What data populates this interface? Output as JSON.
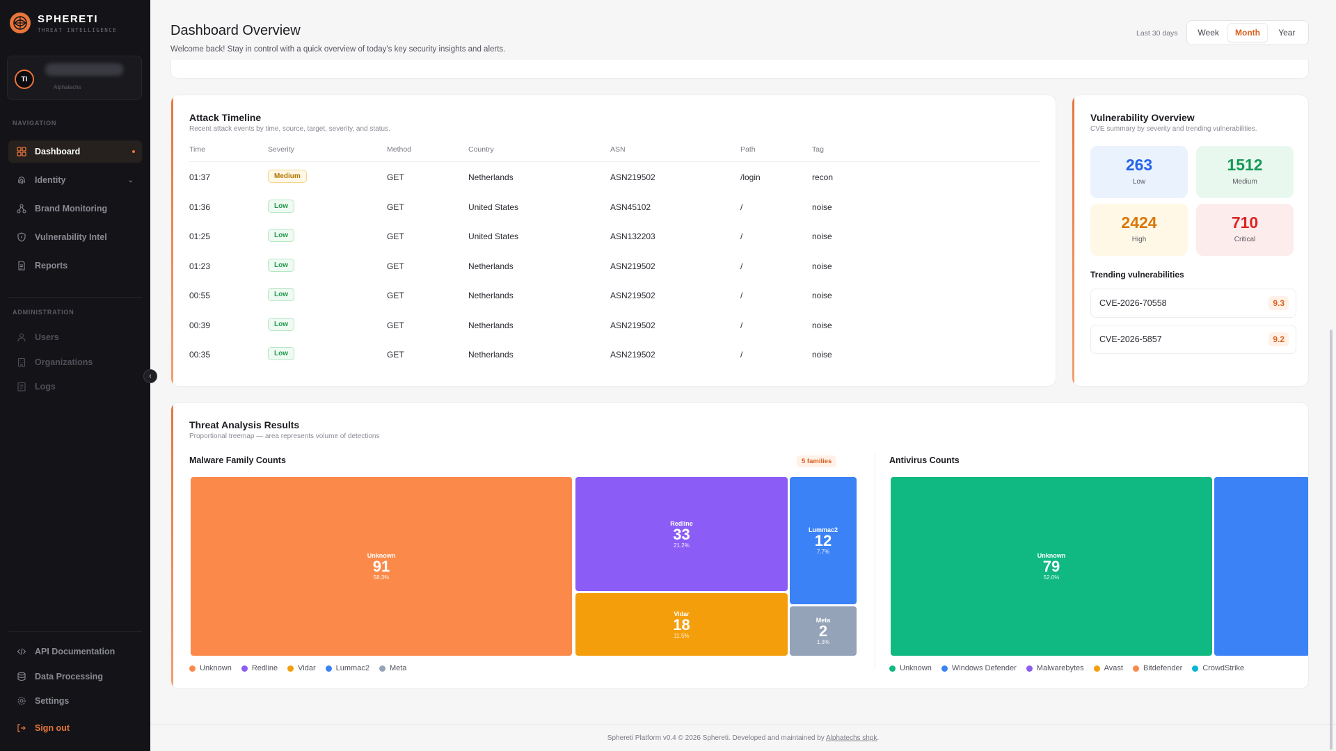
{
  "brand": {
    "name": "SPHERETI",
    "tagline": "THREAT INTELLIGENCE"
  },
  "user": {
    "initials": "TI",
    "org": "Alphatechs"
  },
  "nav": {
    "section_label": "NAVIGATION",
    "items": [
      {
        "label": "Dashboard",
        "icon": "grid-icon"
      },
      {
        "label": "Identity",
        "icon": "fingerprint-icon"
      },
      {
        "label": "Brand Monitoring",
        "icon": "network-icon"
      },
      {
        "label": "Vulnerability Intel",
        "icon": "shield-icon"
      },
      {
        "label": "Reports",
        "icon": "document-icon"
      }
    ]
  },
  "admin": {
    "section_label": "ADMINISTRATION",
    "items": [
      {
        "label": "Users",
        "icon": "user-icon"
      },
      {
        "label": "Organizations",
        "icon": "building-icon"
      },
      {
        "label": "Logs",
        "icon": "logs-icon"
      }
    ]
  },
  "bottom_nav": [
    {
      "label": "API Documentation",
      "icon": "code-icon"
    },
    {
      "label": "Data Processing",
      "icon": "database-icon"
    },
    {
      "label": "Settings",
      "icon": "gear-icon"
    },
    {
      "label": "Sign out",
      "icon": "signout-icon"
    }
  ],
  "header": {
    "title": "Dashboard Overview",
    "subtitle": "Welcome back! Stay in control with a quick overview of today's key security insights and alerts.",
    "range_label": "Last 30 days",
    "periods": [
      "Week",
      "Month",
      "Year"
    ],
    "active_period": "Month"
  },
  "attack_timeline": {
    "title": "Attack Timeline",
    "subtitle": "Recent attack events by time, source, target, severity, and status.",
    "columns": [
      "Time",
      "Severity",
      "Method",
      "Country",
      "ASN",
      "Path",
      "Tag"
    ],
    "rows": [
      {
        "time": "01:37",
        "severity": "Medium",
        "method": "GET",
        "country": "Netherlands",
        "asn": "ASN219502",
        "path": "/login",
        "tag": "recon"
      },
      {
        "time": "01:36",
        "severity": "Low",
        "method": "GET",
        "country": "United States",
        "asn": "ASN45102",
        "path": "/",
        "tag": "noise"
      },
      {
        "time": "01:25",
        "severity": "Low",
        "method": "GET",
        "country": "United States",
        "asn": "ASN132203",
        "path": "/",
        "tag": "noise"
      },
      {
        "time": "01:23",
        "severity": "Low",
        "method": "GET",
        "country": "Netherlands",
        "asn": "ASN219502",
        "path": "/",
        "tag": "noise"
      },
      {
        "time": "00:55",
        "severity": "Low",
        "method": "GET",
        "country": "Netherlands",
        "asn": "ASN219502",
        "path": "/",
        "tag": "noise"
      },
      {
        "time": "00:39",
        "severity": "Low",
        "method": "GET",
        "country": "Netherlands",
        "asn": "ASN219502",
        "path": "/",
        "tag": "noise"
      },
      {
        "time": "00:35",
        "severity": "Low",
        "method": "GET",
        "country": "Netherlands",
        "asn": "ASN219502",
        "path": "/",
        "tag": "noise"
      }
    ]
  },
  "vulnerability": {
    "title": "Vulnerability Overview",
    "subtitle": "CVE summary by severity and trending vulnerabilities.",
    "stats": [
      {
        "value": "263",
        "label": "Low",
        "color": "#2563eb",
        "bg": "#eaf2fd"
      },
      {
        "value": "1512",
        "label": "Medium",
        "color": "#159957",
        "bg": "#e9f8ef"
      },
      {
        "value": "2424",
        "label": "High",
        "color": "#d97706",
        "bg": "#fff8e6"
      },
      {
        "value": "710",
        "label": "Critical",
        "color": "#dc2626",
        "bg": "#fdecec"
      }
    ],
    "trending_label": "Trending vulnerabilities",
    "trending": [
      {
        "id": "CVE-2026-70558",
        "score": "9.3"
      },
      {
        "id": "CVE-2026-5857",
        "score": "9.2"
      }
    ]
  },
  "threat_analysis": {
    "title": "Threat Analysis Results",
    "subtitle": "Proportional treemap — area represents volume of detections",
    "malware": {
      "title": "Malware Family Counts",
      "badge": "5 families",
      "tiles": [
        {
          "name": "Unknown",
          "value": "91",
          "pct": "58.3%",
          "color": "#fb8a4a"
        },
        {
          "name": "Redline",
          "value": "33",
          "pct": "21.2%",
          "color": "#8b5cf6"
        },
        {
          "name": "Vidar",
          "value": "18",
          "pct": "11.5%",
          "color": "#f59e0b"
        },
        {
          "name": "Lummac2",
          "value": "12",
          "pct": "7.7%",
          "color": "#3b82f6"
        },
        {
          "name": "Meta",
          "value": "2",
          "pct": "1.3%",
          "color": "#94a3b8"
        }
      ]
    },
    "antivirus": {
      "title": "Antivirus Counts",
      "tiles": [
        {
          "name": "Unknown",
          "value": "79",
          "pct": "52.0%",
          "color": "#10b981"
        },
        {
          "name": "",
          "value": "",
          "pct": "",
          "color": "#3b82f6"
        }
      ],
      "legend": [
        {
          "label": "Unknown",
          "color": "#10b981"
        },
        {
          "label": "Windows Defender",
          "color": "#3b82f6"
        },
        {
          "label": "Malwarebytes",
          "color": "#8b5cf6"
        },
        {
          "label": "Avast",
          "color": "#f59e0b"
        },
        {
          "label": "Bitdefender",
          "color": "#fb8a4a"
        },
        {
          "label": "CrowdStrike",
          "color": "#06b6d4"
        }
      ]
    }
  },
  "footer": {
    "text": "Sphereti Platform v0.4 © 2026 Sphereti. Developed and maintained by",
    "link": "Alphatechs shpk",
    "end": "."
  }
}
